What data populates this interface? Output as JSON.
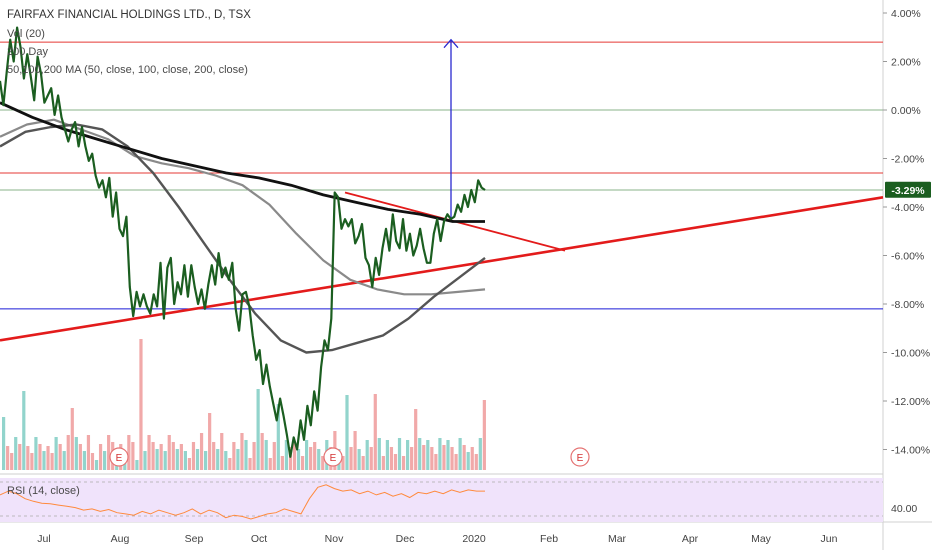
{
  "symbol_title": "FAIRFAX FINANCIAL HOLDINGS LTD., D, TSX",
  "legend": {
    "vol": "Vol (20)",
    "ma200": "200 Day",
    "ma_multi": "50,100,200 MA (50, close, 100, close, 200, close)"
  },
  "rsi_label": "RSI (14, close)",
  "price_badge": "-3.29%",
  "earnings_marker": "E",
  "colors": {
    "price": "#1b5e20",
    "ma50": "#555555",
    "ma100": "#8a8a8a",
    "ma200": "#111111",
    "resistance": "#e53935",
    "trendline": "#e31b1b",
    "support": "#1a1ad6",
    "arrow": "#2a2ad0",
    "vol_up": "#7fcdc3",
    "vol_down": "#ef9a9a",
    "rsi": "#ff8a3d",
    "rsi_band": "#f0e3fb",
    "badge": "#1b5e20"
  },
  "chart_data": {
    "type": "line",
    "title": "FAIRFAX FINANCIAL HOLDINGS LTD., D, TSX",
    "y_unit": "%",
    "y_ticks": [
      "4.00%",
      "2.00%",
      "0.00%",
      "-2.00%",
      "-4.00%",
      "-6.00%",
      "-8.00%",
      "-10.00%",
      "-12.00%",
      "-14.00%"
    ],
    "ylim": [
      -15.5,
      4.5
    ],
    "x_ticks": [
      "Jul",
      "Aug",
      "Sep",
      "Oct",
      "Nov",
      "Dec",
      "2020",
      "Feb",
      "Mar",
      "Apr",
      "May",
      "Jun"
    ],
    "last_value_label": "-3.29%",
    "series": [
      {
        "name": "price",
        "values": [
          1.2,
          0.2,
          1.6,
          2.9,
          2.0,
          3.4,
          2.6,
          1.3,
          2.3,
          1.4,
          0.4,
          2.2,
          1.5,
          0.3,
          0.6,
          0.9,
          -0.2,
          0.6,
          -0.3,
          -0.8,
          -1.3,
          -0.8,
          -0.5,
          -1.5,
          -0.7,
          -1.5,
          -2.1,
          -1.8,
          -2.7,
          -3.2,
          -2.9,
          -3.6,
          -2.8,
          -4.4,
          -3.4,
          -4.9,
          -5.2,
          -4.4,
          -7.3,
          -8.5,
          -7.5,
          -8.1,
          -7.6,
          -8.1,
          -8.4,
          -7.6,
          -8.1,
          -6.3,
          -8.6,
          -6.5,
          -6.1,
          -8.0,
          -7.1,
          -7.6,
          -6.4,
          -7.7,
          -6.4,
          -7.3,
          -8.0,
          -7.4,
          -8.2,
          -7.2,
          -6.4,
          -7.2,
          -5.9,
          -6.9,
          -6.5,
          -7.0,
          -6.3,
          -8.2,
          -9.1,
          -7.6,
          -7.5,
          -8.1,
          -9.3,
          -10.3,
          -9.9,
          -11.3,
          -10.5,
          -11.4,
          -12.1,
          -12.8,
          -11.9,
          -12.6,
          -13.4,
          -14.3,
          -13.5,
          -14.0,
          -12.8,
          -13.6,
          -12.2,
          -13.0,
          -11.6,
          -12.4,
          -10.6,
          -9.5,
          -9.9,
          -8.6,
          -3.4,
          -3.6,
          -4.9,
          -4.5,
          -4.8,
          -4.5,
          -5.5,
          -5.2,
          -4.7,
          -6.1,
          -6.4,
          -7.3,
          -6.1,
          -6.8,
          -5.7,
          -4.9,
          -5.8,
          -4.3,
          -5.4,
          -5.7,
          -4.5,
          -5.8,
          -5.1,
          -6.0,
          -5.6,
          -4.9,
          -5.7,
          -6.3,
          -6.3,
          -5.1,
          -4.5,
          -5.4,
          -4.6,
          -4.3,
          -4.5,
          -4.4,
          -3.9,
          -4.2,
          -3.5,
          -4.0,
          -3.3,
          -3.8,
          -2.9,
          -3.2,
          -3.3
        ]
      },
      {
        "name": "50",
        "values": [
          -1.5,
          -0.9,
          -0.7,
          -0.6,
          -0.8,
          -1.5,
          -2.6,
          -4.0,
          -5.5,
          -7.0,
          -8.4,
          -9.5,
          -10.0,
          -9.9,
          -9.6,
          -9.3,
          -8.6,
          -7.7,
          -6.9,
          -6.1
        ]
      },
      {
        "name": "100",
        "values": [
          -1.1,
          -0.6,
          -0.4,
          -0.8,
          -1.2,
          -1.9,
          -2.2,
          -2.4,
          -2.7,
          -3.1,
          -3.9,
          -5.1,
          -6.2,
          -7.0,
          -7.4,
          -7.6,
          -7.6,
          -7.5,
          -7.4
        ]
      },
      {
        "name": "200",
        "values": [
          0.3,
          -0.3,
          -0.8,
          -1.2,
          -1.6,
          -2.0,
          -2.3,
          -2.6,
          -2.8,
          -3.1,
          -3.5,
          -3.8,
          -4.1,
          -4.3,
          -4.6,
          -4.6
        ]
      }
    ],
    "annotations": [
      {
        "type": "horizontal-line",
        "value": 2.8,
        "color": "#e53935"
      },
      {
        "type": "horizontal-line",
        "value": -2.6,
        "color": "#e53935"
      },
      {
        "type": "horizontal-line",
        "value": -3.3,
        "color": "#8ab38a"
      },
      {
        "type": "horizontal-line",
        "value": 0.0,
        "color": "#8ab38a"
      },
      {
        "type": "horizontal-line",
        "value": -8.2,
        "color": "#1a1ad6"
      },
      {
        "type": "trendline",
        "from": {
          "x": 0,
          "y": -9.5
        },
        "to": {
          "x": 1,
          "y": -3.6
        }
      },
      {
        "type": "trendline",
        "from": {
          "x": 0.39,
          "y": -3.4
        },
        "to": {
          "x": 0.64,
          "y": -5.8
        }
      },
      {
        "type": "arrow",
        "from_y": -4.6,
        "to_y": 2.9
      }
    ],
    "rsi": {
      "label": "RSI (14, close)",
      "tick": "40.00",
      "values": [
        68,
        74,
        70,
        62,
        58,
        55,
        54,
        52,
        50,
        48,
        44,
        46,
        42,
        45,
        40,
        38,
        36,
        42,
        38,
        44,
        40,
        36,
        40,
        46,
        38,
        44,
        40,
        32,
        36,
        34,
        30,
        34,
        38,
        40,
        46,
        42,
        38,
        62,
        80,
        84,
        78,
        74,
        76,
        70,
        74,
        68,
        72,
        66,
        70,
        64,
        72,
        70,
        74,
        70,
        76,
        72,
        76,
        74,
        74
      ]
    }
  }
}
